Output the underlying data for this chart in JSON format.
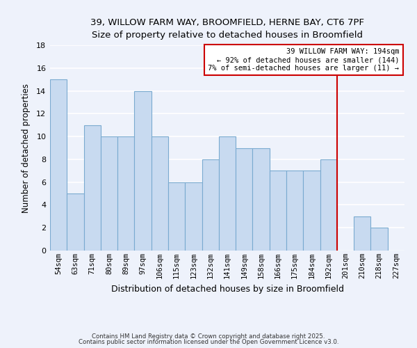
{
  "title_line1": "39, WILLOW FARM WAY, BROOMFIELD, HERNE BAY, CT6 7PF",
  "title_line2": "Size of property relative to detached houses in Broomfield",
  "xlabel": "Distribution of detached houses by size in Broomfield",
  "ylabel": "Number of detached properties",
  "bar_labels": [
    "54sqm",
    "63sqm",
    "71sqm",
    "80sqm",
    "89sqm",
    "97sqm",
    "106sqm",
    "115sqm",
    "123sqm",
    "132sqm",
    "141sqm",
    "149sqm",
    "158sqm",
    "166sqm",
    "175sqm",
    "184sqm",
    "192sqm",
    "201sqm",
    "210sqm",
    "218sqm",
    "227sqm"
  ],
  "bar_values": [
    15,
    5,
    11,
    10,
    10,
    14,
    10,
    6,
    6,
    8,
    10,
    9,
    9,
    7,
    7,
    7,
    8,
    0,
    3,
    2,
    0
  ],
  "bar_color": "#c8daf0",
  "bar_edge_color": "#7aaad0",
  "background_color": "#eef2fb",
  "grid_color": "#ffffff",
  "vline_x": 16.5,
  "vline_color": "#cc0000",
  "annotation_text": "39 WILLOW FARM WAY: 194sqm\n← 92% of detached houses are smaller (144)\n7% of semi-detached houses are larger (11) →",
  "annotation_box_color": "#cc0000",
  "ylim": [
    0,
    18
  ],
  "yticks": [
    0,
    2,
    4,
    6,
    8,
    10,
    12,
    14,
    16,
    18
  ],
  "footer_line1": "Contains HM Land Registry data © Crown copyright and database right 2025.",
  "footer_line2": "Contains public sector information licensed under the Open Government Licence v3.0."
}
